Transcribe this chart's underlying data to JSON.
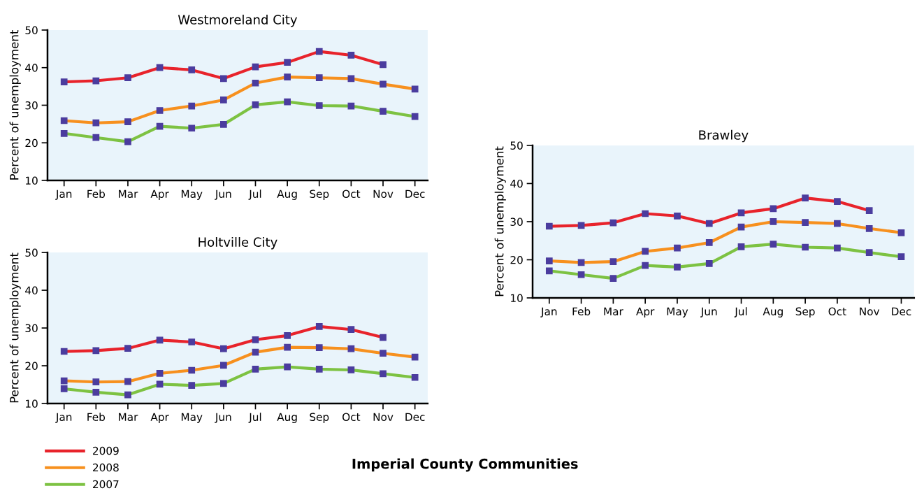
{
  "chart_data": [
    {
      "type": "line",
      "title": "Westmoreland City",
      "ylabel": "Percent of unemployment",
      "categories": [
        "Jan",
        "Feb",
        "Mar",
        "Apr",
        "May",
        "Jun",
        "Jul",
        "Aug",
        "Sep",
        "Oct",
        "Nov",
        "Dec"
      ],
      "ylim": [
        10,
        50
      ],
      "yticks": [
        10,
        20,
        30,
        40,
        50
      ],
      "grid": false,
      "marker": "square",
      "legend": "bottom left",
      "series": [
        {
          "name": "2009",
          "color": "#e8232b",
          "values": [
            36.2,
            36.5,
            37.3,
            40.0,
            39.4,
            37.1,
            40.2,
            41.4,
            44.3,
            43.3,
            40.8,
            null
          ]
        },
        {
          "name": "2008",
          "color": "#f7901e",
          "values": [
            25.9,
            25.3,
            25.6,
            28.6,
            29.8,
            31.4,
            35.9,
            37.5,
            37.3,
            37.1,
            35.6,
            34.3
          ]
        },
        {
          "name": "2007",
          "color": "#7dc242",
          "values": [
            22.5,
            21.4,
            20.3,
            24.4,
            23.9,
            24.9,
            30.1,
            30.9,
            29.9,
            29.8,
            28.4,
            27.0
          ]
        }
      ]
    },
    {
      "type": "line",
      "title": "Holtville City",
      "ylabel": "Percent of unemployment",
      "categories": [
        "Jan",
        "Feb",
        "Mar",
        "Apr",
        "May",
        "Jun",
        "Jul",
        "Aug",
        "Sep",
        "Oct",
        "Nov",
        "Dec"
      ],
      "ylim": [
        10,
        50
      ],
      "yticks": [
        10,
        20,
        30,
        40,
        50
      ],
      "grid": false,
      "marker": "square",
      "legend": false,
      "series": [
        {
          "name": "2009",
          "color": "#e8232b",
          "values": [
            23.8,
            24.0,
            24.6,
            26.8,
            26.3,
            24.5,
            26.9,
            28.0,
            30.4,
            29.6,
            27.5,
            null
          ]
        },
        {
          "name": "2008",
          "color": "#f7901e",
          "values": [
            16.0,
            15.7,
            15.8,
            18.0,
            18.8,
            20.1,
            23.6,
            24.9,
            24.8,
            24.5,
            23.3,
            22.3
          ]
        },
        {
          "name": "2007",
          "color": "#7dc242",
          "values": [
            13.9,
            13.0,
            12.3,
            15.1,
            14.8,
            15.3,
            19.1,
            19.7,
            19.1,
            18.9,
            17.9,
            16.9
          ]
        }
      ]
    },
    {
      "type": "line",
      "title": "Brawley",
      "ylabel": "Percent of unemployment",
      "categories": [
        "Jan",
        "Feb",
        "Mar",
        "Apr",
        "May",
        "Jun",
        "Jul",
        "Aug",
        "Sep",
        "Oct",
        "Nov",
        "Dec"
      ],
      "ylim": [
        10,
        50
      ],
      "yticks": [
        10,
        20,
        30,
        40,
        50
      ],
      "grid": false,
      "marker": "square",
      "legend": false,
      "annotations": [
        "Imperial County Communities"
      ],
      "series": [
        {
          "name": "2009",
          "color": "#e8232b",
          "values": [
            28.8,
            29.0,
            29.7,
            32.1,
            31.5,
            29.5,
            32.3,
            33.4,
            36.2,
            35.3,
            32.9,
            null
          ]
        },
        {
          "name": "2008",
          "color": "#f7901e",
          "values": [
            19.7,
            19.3,
            19.5,
            22.2,
            23.1,
            24.5,
            28.6,
            30.0,
            29.8,
            29.5,
            28.2,
            27.1
          ]
        },
        {
          "name": "2007",
          "color": "#7dc242",
          "values": [
            17.1,
            16.1,
            15.1,
            18.5,
            18.1,
            19.0,
            23.4,
            24.1,
            23.3,
            23.1,
            21.9,
            20.8
          ]
        }
      ]
    }
  ]
}
